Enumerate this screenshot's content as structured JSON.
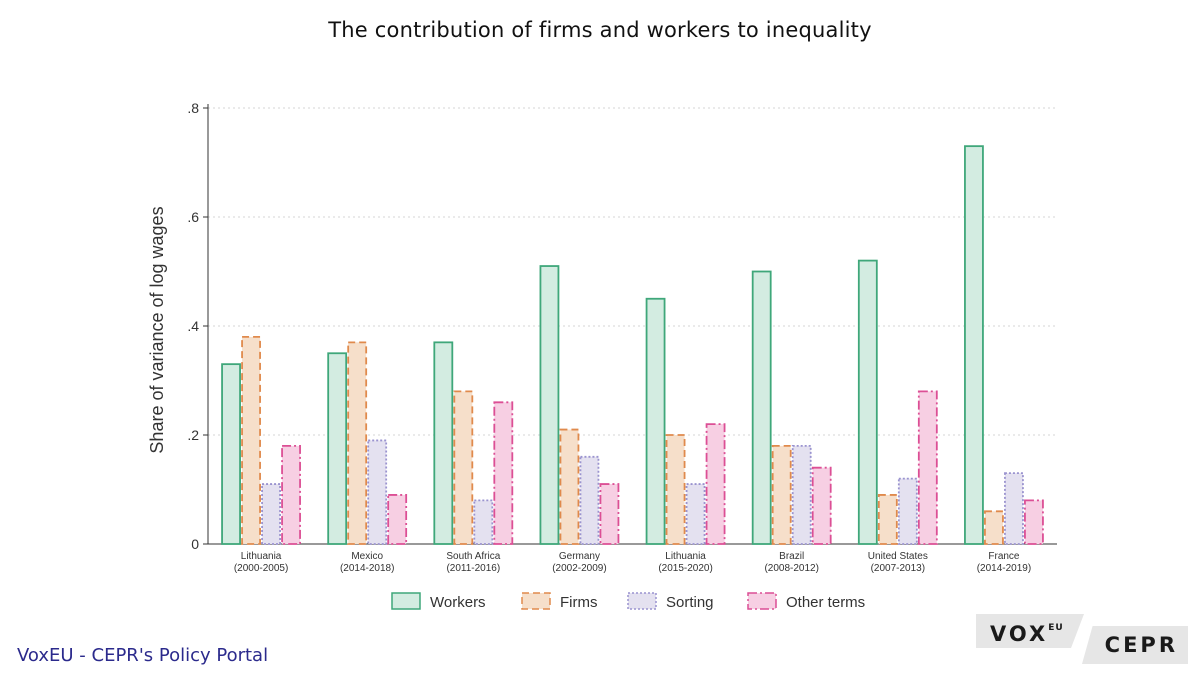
{
  "title": "The contribution of firms and workers to inequality",
  "footer": "VoxEU - CEPR's Policy Portal",
  "logo": {
    "top": "VOX",
    "top_sup": "EU",
    "bottom": "CEPR"
  },
  "chart_data": {
    "type": "bar",
    "title": "The contribution of firms and workers to inequality",
    "xlabel": "",
    "ylabel": "Share of variance of log wages",
    "ylim": [
      0,
      0.8
    ],
    "yticks": [
      {
        "value": 0,
        "label": "0"
      },
      {
        "value": 0.2,
        "label": ".2"
      },
      {
        "value": 0.4,
        "label": ".4"
      },
      {
        "value": 0.6,
        "label": ".6"
      },
      {
        "value": 0.8,
        "label": ".8"
      }
    ],
    "grid": true,
    "legend": "bottom",
    "categories": [
      {
        "name": "Lithuania",
        "period": "(2000-2005)"
      },
      {
        "name": "Mexico",
        "period": "(2014-2018)"
      },
      {
        "name": "South Africa",
        "period": "(2011-2016)"
      },
      {
        "name": "Germany",
        "period": "(2002-2009)"
      },
      {
        "name": "Lithuania",
        "period": "(2015-2020)"
      },
      {
        "name": "Brazil",
        "period": "(2008-2012)"
      },
      {
        "name": "United States",
        "period": "(2007-2013)"
      },
      {
        "name": "France",
        "period": "(2014-2019)"
      }
    ],
    "series": [
      {
        "name": "Workers",
        "fill": "#d3ece1",
        "stroke": "#3fa77a",
        "dash": "none",
        "values": [
          0.33,
          0.35,
          0.37,
          0.51,
          0.45,
          0.5,
          0.52,
          0.73
        ]
      },
      {
        "name": "Firms",
        "fill": "#f6dfca",
        "stroke": "#e08a4c",
        "dash": "7,4",
        "values": [
          0.38,
          0.37,
          0.28,
          0.21,
          0.2,
          0.18,
          0.09,
          0.06
        ]
      },
      {
        "name": "Sorting",
        "fill": "#e4e1f0",
        "stroke": "#9a93cf",
        "dash": "2,2",
        "values": [
          0.11,
          0.19,
          0.08,
          0.16,
          0.11,
          0.18,
          0.12,
          0.13
        ]
      },
      {
        "name": "Other terms",
        "fill": "#f7cfe3",
        "stroke": "#dc4f95",
        "dash": "9,3,2,3",
        "values": [
          0.18,
          0.09,
          0.26,
          0.11,
          0.22,
          0.14,
          0.28,
          0.08
        ]
      }
    ]
  }
}
